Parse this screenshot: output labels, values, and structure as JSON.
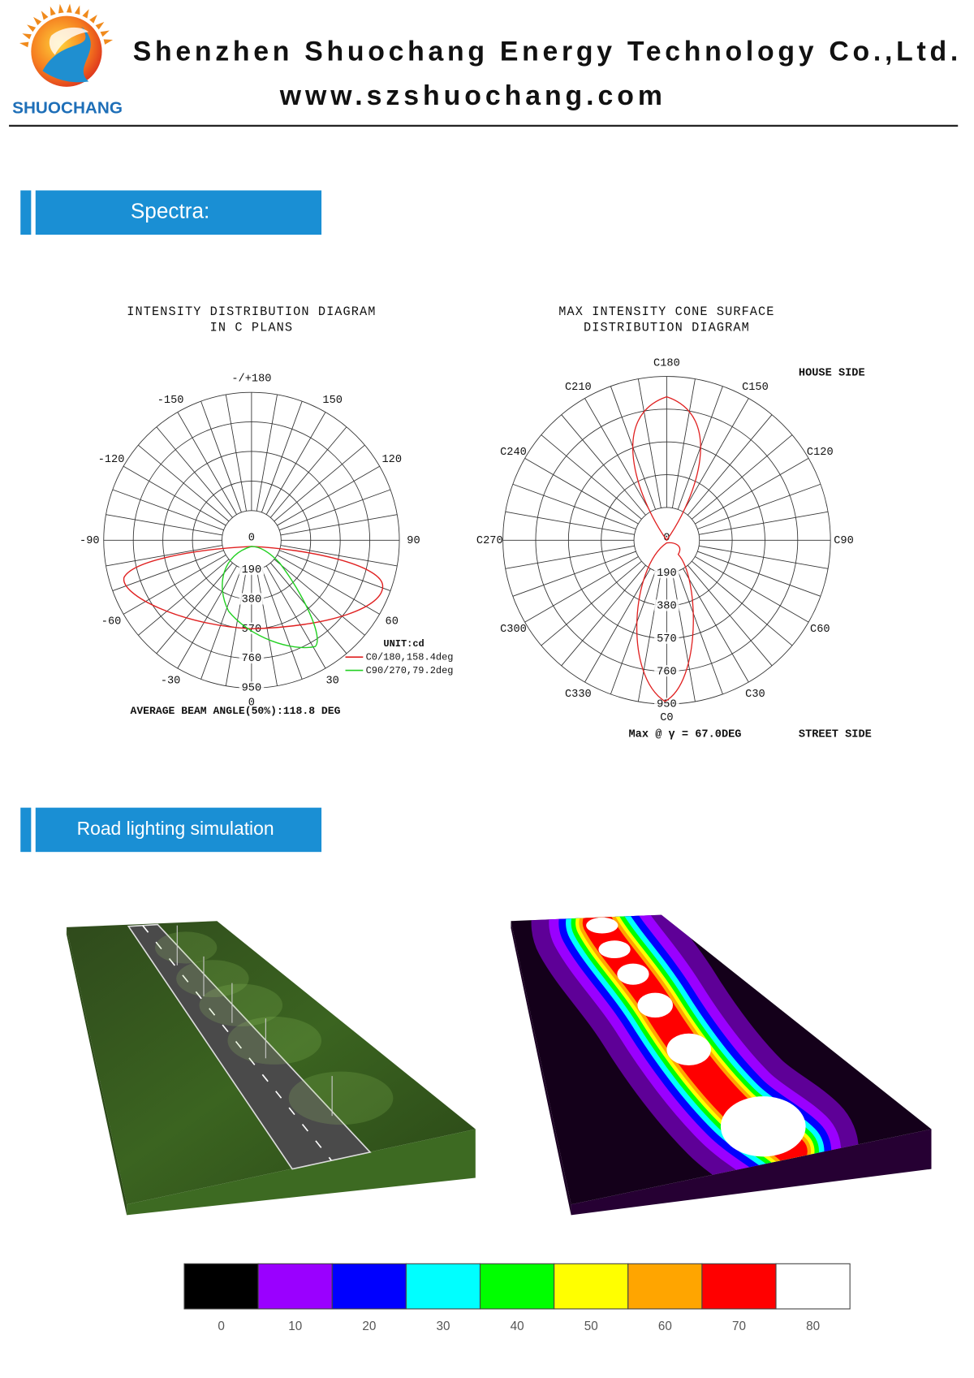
{
  "header": {
    "logo_text": "SHUOCHANG",
    "company": "Shenzhen Shuochang Energy Technology Co.,Ltd.",
    "website": "www.szshuochang.com"
  },
  "sections": [
    "Spectra:",
    "Road lighting simulation"
  ],
  "intensity_diagram": {
    "title": [
      "INTENSITY DISTRIBUTION DIAGRAM",
      "IN C PLANS"
    ],
    "angle_labels": [
      "-/+180",
      "150",
      "120",
      "90",
      "60",
      "30",
      "0",
      "-30",
      "-60",
      "-90",
      "-120",
      "-150"
    ],
    "radial_labels": [
      0,
      190,
      380,
      570,
      760,
      950
    ],
    "unit": "UNIT:cd",
    "legend": [
      {
        "name": "C0/180,158.4deg",
        "color": "#e02020"
      },
      {
        "name": "C90/270,79.2deg",
        "color": "#22d022"
      }
    ],
    "note": "AVERAGE BEAM ANGLE(50%):118.8 DEG"
  },
  "cone_diagram": {
    "title": [
      "MAX INTENSITY CONE SURFACE",
      "DISTRIBUTION DIAGRAM"
    ],
    "angle_labels": [
      "C180",
      "C150",
      "C120",
      "C90",
      "C60",
      "C30",
      "C0",
      "C330",
      "C300",
      "C270",
      "C240",
      "C210"
    ],
    "radial_labels": [
      0,
      190,
      380,
      570,
      760,
      950
    ],
    "house_side": "HOUSE SIDE",
    "street_side": "STREET SIDE",
    "max_note": "Max @ γ = 67.0DEG",
    "color": "#e02020"
  },
  "colorbar": {
    "labels": [
      0,
      10,
      20,
      30,
      40,
      50,
      60,
      70,
      80
    ],
    "colors": [
      "#000000",
      "#9a00ff",
      "#0000ff",
      "#00ffff",
      "#00ff00",
      "#ffff00",
      "#ffa500",
      "#ff0000",
      "#ffffff"
    ]
  }
}
